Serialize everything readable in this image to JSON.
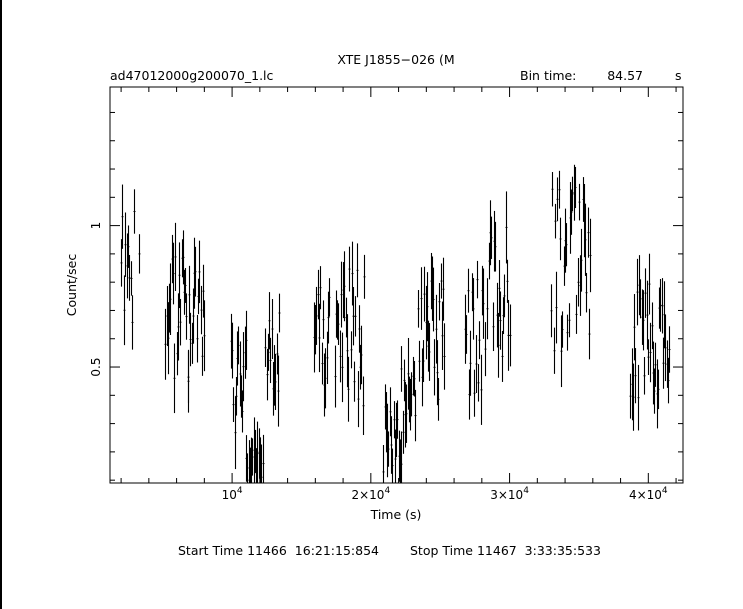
{
  "chart_data": {
    "type": "scatter",
    "style": "error bars",
    "title": "XTE J1855−026 (M",
    "file_label": "ad47012000g200070_1.lc",
    "bin_time_label": "Bin time:",
    "bin_time_value": "84.57",
    "bin_time_unit": "s",
    "xlabel": "Time (s)",
    "ylabel": "Count/sec",
    "xlim": [
      1200,
      42500
    ],
    "ylim": [
      0.09,
      1.49
    ],
    "xticks": [
      {
        "value": 10000,
        "mant": "",
        "exp": "4"
      },
      {
        "value": 20000,
        "mant": "2×",
        "exp": "4"
      },
      {
        "value": 30000,
        "mant": "3×",
        "exp": "4"
      },
      {
        "value": 40000,
        "mant": "4×",
        "exp": "4"
      }
    ],
    "yticks": [
      {
        "value": 0.5,
        "label": "0.5"
      },
      {
        "value": 1.0,
        "label": "1"
      }
    ],
    "start_time": "Start Time 11466  16:21:15:854",
    "stop_time": "Stop Time 11467  3:33:35:533",
    "segments": [
      {
        "x0": 2000,
        "x1": 2900,
        "n": 10,
        "base": 0.85,
        "amp": 0.2,
        "seed": 1
      },
      {
        "x0": 3300,
        "x1": 3300,
        "n": 1,
        "base": 0.9,
        "amp": 0.0,
        "seed": 2
      },
      {
        "x0": 5200,
        "x1": 6800,
        "n": 19,
        "base": 0.75,
        "amp": 0.3,
        "seed": 3
      },
      {
        "x0": 6800,
        "x1": 8000,
        "n": 14,
        "base": 0.7,
        "amp": 0.28,
        "seed": 4
      },
      {
        "x0": 9900,
        "x1": 11000,
        "n": 13,
        "base": 0.42,
        "amp": 0.22,
        "seed": 5
      },
      {
        "x0": 11000,
        "x1": 12200,
        "n": 14,
        "base": 0.15,
        "amp": 0.06,
        "seed": 6
      },
      {
        "x0": 12400,
        "x1": 13400,
        "n": 12,
        "base": 0.55,
        "amp": 0.15,
        "seed": 7
      },
      {
        "x0": 15900,
        "x1": 17000,
        "n": 13,
        "base": 0.65,
        "amp": 0.22,
        "seed": 8
      },
      {
        "x0": 17400,
        "x1": 19500,
        "n": 25,
        "base": 0.6,
        "amp": 0.25,
        "seed": 9
      },
      {
        "x0": 20900,
        "x1": 22200,
        "n": 15,
        "base": 0.25,
        "amp": 0.14,
        "seed": 10
      },
      {
        "x0": 22200,
        "x1": 23200,
        "n": 12,
        "base": 0.38,
        "amp": 0.14,
        "seed": 11
      },
      {
        "x0": 23400,
        "x1": 25300,
        "n": 22,
        "base": 0.6,
        "amp": 0.22,
        "seed": 12
      },
      {
        "x0": 26800,
        "x1": 28200,
        "n": 16,
        "base": 0.6,
        "amp": 0.22,
        "seed": 13
      },
      {
        "x0": 28400,
        "x1": 30000,
        "n": 18,
        "base": 0.75,
        "amp": 0.25,
        "seed": 14
      },
      {
        "x0": 33000,
        "x1": 35800,
        "n": 32,
        "base": 0.85,
        "amp": 0.3,
        "seed": 15
      },
      {
        "x0": 38700,
        "x1": 41500,
        "n": 32,
        "base": 0.58,
        "amp": 0.22,
        "seed": 16
      }
    ],
    "grid": false,
    "legend": "none"
  }
}
